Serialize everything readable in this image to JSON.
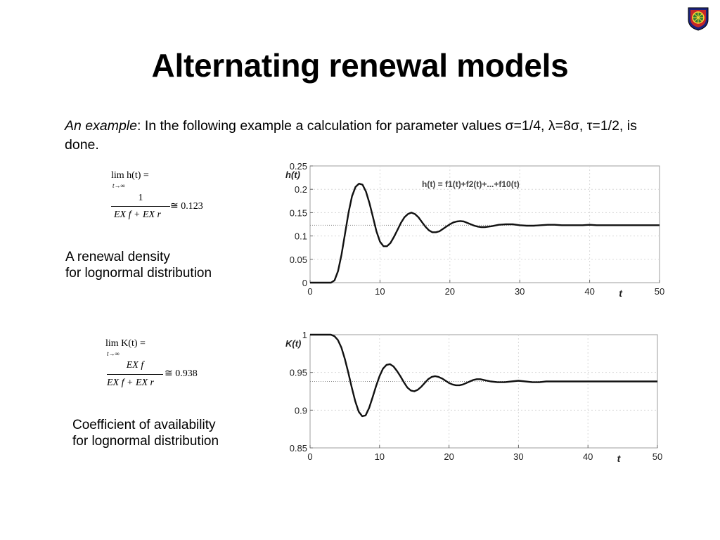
{
  "slide": {
    "title": "Alternating renewal models",
    "intro_em": "An example",
    "intro_rest": ": In the following example a calculation for parameter values σ=1/4, λ=8σ, τ=1/2, is done."
  },
  "formula1": {
    "lim": "lim h(t) =",
    "lim_sub": "t→∞",
    "numerator": "1",
    "denominator": "EX f + EX r",
    "result": "≅ 0.123"
  },
  "formula2": {
    "lim": "lim K(t) =",
    "lim_sub": "t→∞",
    "numerator": "EX f",
    "denominator": "EX f + EX r",
    "result": "≅ 0.938"
  },
  "captions": {
    "renewal_line1": "A renewal density",
    "renewal_line2": "for lognormal distribution",
    "availability_line1": "Coefficient of availability",
    "availability_line2": "for lognormal distribution"
  },
  "chart_data": [
    {
      "type": "line",
      "ylabel": "h(t)",
      "xlabel": "t",
      "legend": "h(t) = f1(t)+f2(t)+...+f10(t)",
      "xlim": [
        0,
        50
      ],
      "ylim": [
        0,
        0.25
      ],
      "xticks": [
        "0",
        "10",
        "20",
        "30",
        "40",
        "50"
      ],
      "yticks": [
        "0",
        "0.05",
        "0.1",
        "0.15",
        "0.2",
        "0.25"
      ],
      "grid": true,
      "asymptote": 0.123,
      "series": [
        {
          "x": [
            0,
            1,
            2,
            3,
            3.5,
            4,
            4.5,
            5,
            5.5,
            6,
            6.5,
            7,
            7.5,
            8,
            8.5,
            9,
            9.5,
            10,
            10.5,
            11,
            11.5,
            12,
            12.5,
            13,
            13.5,
            14,
            14.5,
            15,
            15.5,
            16,
            16.5,
            17,
            17.5,
            18,
            18.5,
            19,
            19.5,
            20,
            20.5,
            21,
            21.5,
            22,
            22.5,
            23,
            23.5,
            24,
            24.5,
            25,
            26,
            27,
            28,
            29,
            30,
            31,
            32,
            33,
            34,
            35,
            36,
            37,
            38,
            39,
            40,
            41,
            42,
            43,
            44,
            45,
            46,
            47,
            48,
            49,
            50
          ],
          "y": [
            0,
            0,
            0,
            0,
            0.005,
            0.025,
            0.06,
            0.105,
            0.15,
            0.185,
            0.205,
            0.212,
            0.21,
            0.195,
            0.17,
            0.14,
            0.11,
            0.088,
            0.078,
            0.078,
            0.085,
            0.098,
            0.113,
            0.128,
            0.14,
            0.147,
            0.15,
            0.147,
            0.14,
            0.13,
            0.12,
            0.112,
            0.108,
            0.108,
            0.11,
            0.115,
            0.12,
            0.125,
            0.129,
            0.131,
            0.132,
            0.131,
            0.128,
            0.125,
            0.122,
            0.12,
            0.119,
            0.119,
            0.121,
            0.124,
            0.125,
            0.125,
            0.123,
            0.122,
            0.122,
            0.123,
            0.124,
            0.124,
            0.123,
            0.123,
            0.123,
            0.123,
            0.124,
            0.123,
            0.123,
            0.123,
            0.123,
            0.123,
            0.123,
            0.123,
            0.123,
            0.123,
            0.123
          ]
        }
      ]
    },
    {
      "type": "line",
      "ylabel": "K(t)",
      "xlabel": "t",
      "xlim": [
        0,
        50
      ],
      "ylim": [
        0.85,
        1
      ],
      "xticks": [
        "0",
        "10",
        "20",
        "30",
        "40",
        "50"
      ],
      "yticks": [
        "0.85",
        "0.9",
        "0.95",
        "1"
      ],
      "grid": true,
      "asymptote": 0.938,
      "series": [
        {
          "x": [
            0,
            1,
            2,
            3,
            3.5,
            4,
            4.5,
            5,
            5.5,
            6,
            6.5,
            7,
            7.5,
            8,
            8.5,
            9,
            9.5,
            10,
            10.5,
            11,
            11.5,
            12,
            12.5,
            13,
            13.5,
            14,
            14.5,
            15,
            15.5,
            16,
            16.5,
            17,
            17.5,
            18,
            18.5,
            19,
            19.5,
            20,
            20.5,
            21,
            21.5,
            22,
            22.5,
            23,
            23.5,
            24,
            24.5,
            25,
            26,
            27,
            28,
            29,
            30,
            31,
            32,
            33,
            34,
            35,
            36,
            37,
            38,
            39,
            40,
            41,
            42,
            43,
            44,
            45,
            46,
            47,
            48,
            49,
            50
          ],
          "y": [
            1,
            1,
            1,
            1,
            0.998,
            0.993,
            0.983,
            0.968,
            0.95,
            0.93,
            0.912,
            0.898,
            0.892,
            0.893,
            0.903,
            0.917,
            0.932,
            0.945,
            0.955,
            0.96,
            0.961,
            0.958,
            0.952,
            0.945,
            0.937,
            0.93,
            0.926,
            0.925,
            0.927,
            0.931,
            0.936,
            0.941,
            0.944,
            0.945,
            0.944,
            0.942,
            0.939,
            0.936,
            0.934,
            0.933,
            0.933,
            0.934,
            0.936,
            0.938,
            0.94,
            0.941,
            0.941,
            0.94,
            0.938,
            0.937,
            0.937,
            0.938,
            0.939,
            0.938,
            0.937,
            0.937,
            0.938,
            0.938,
            0.938,
            0.938,
            0.938,
            0.938,
            0.938,
            0.938,
            0.938,
            0.938,
            0.938,
            0.938,
            0.938,
            0.938,
            0.938,
            0.938,
            0.938
          ]
        }
      ]
    }
  ]
}
